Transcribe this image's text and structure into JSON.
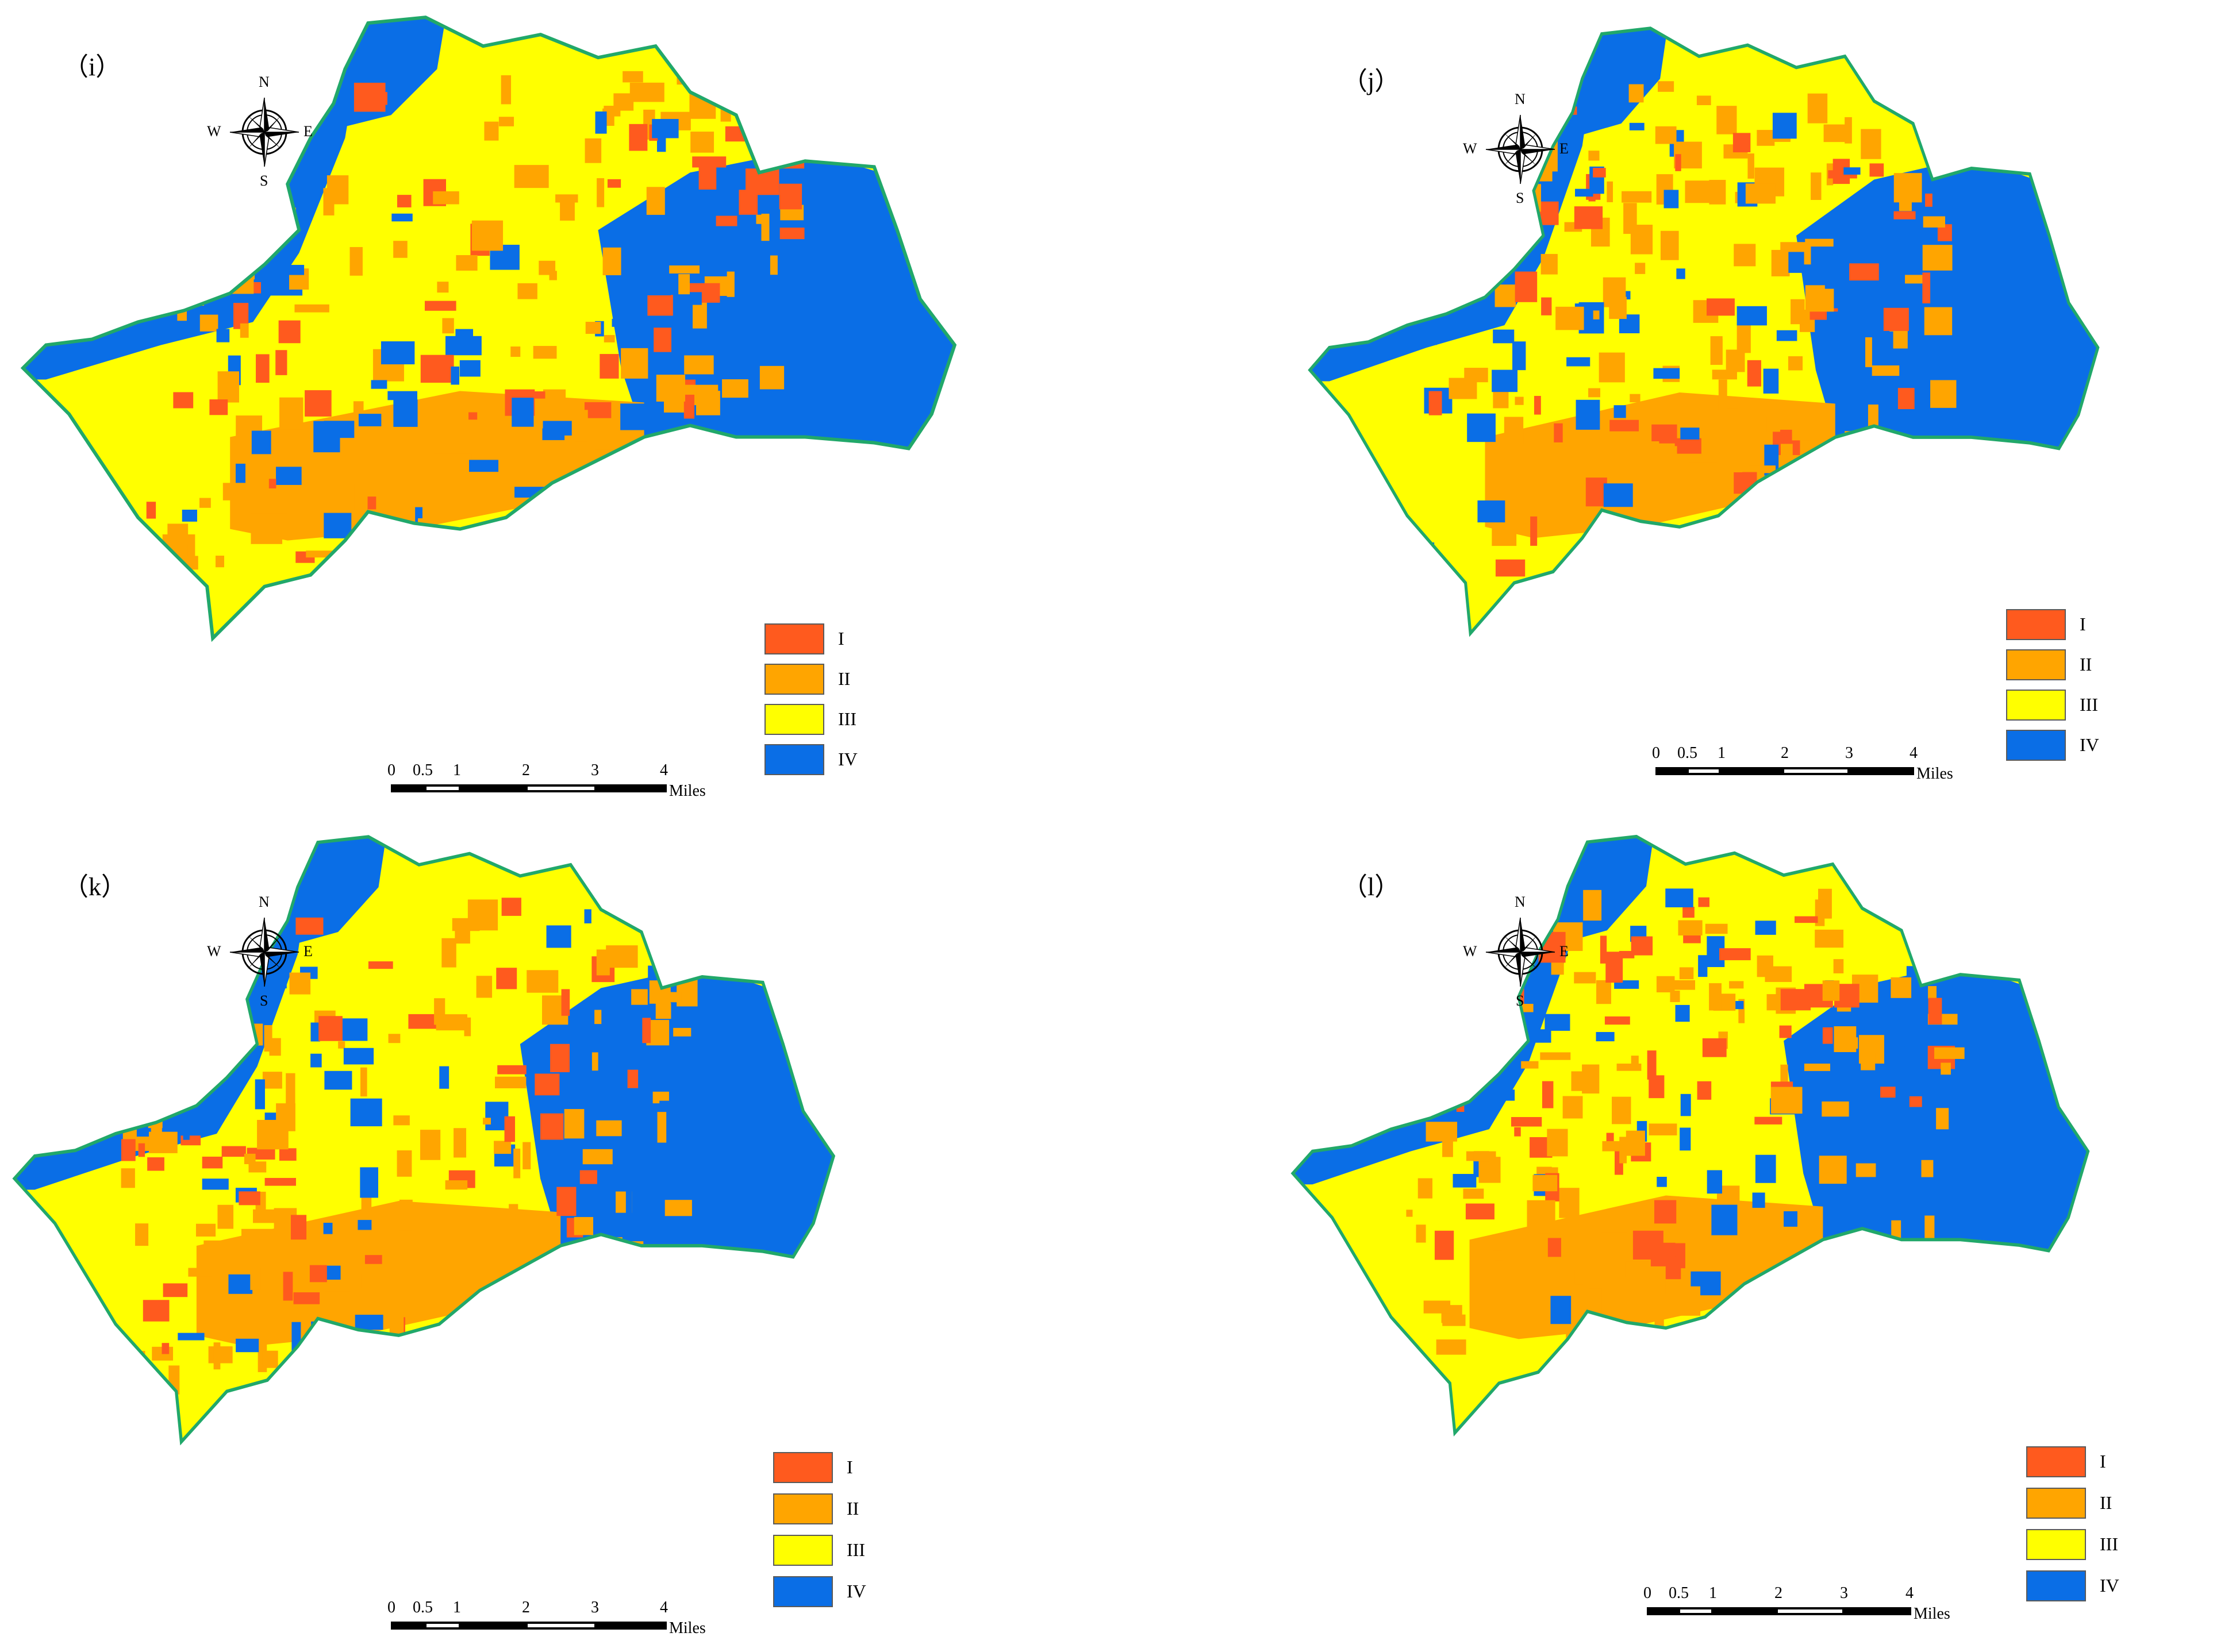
{
  "colors": {
    "class_I": "#ff5a1e",
    "class_II": "#ffa500",
    "class_III": "#ffff00",
    "class_IV": "#0a6ee6",
    "boundary": "#21a86a"
  },
  "compass": {
    "n": "N",
    "s": "S",
    "e": "E",
    "w": "W",
    "icon": "compass-rose-icon"
  },
  "legend_labels": [
    "I",
    "II",
    "III",
    "IV"
  ],
  "scale": {
    "ticks": [
      "0",
      "0.5",
      "1",
      "2",
      "3",
      "4"
    ],
    "units": "Miles"
  },
  "panels": [
    {
      "id": "i",
      "label": "（i）"
    },
    {
      "id": "j",
      "label": "（j）"
    },
    {
      "id": "k",
      "label": "（k）"
    },
    {
      "id": "l",
      "label": "（l）"
    }
  ]
}
